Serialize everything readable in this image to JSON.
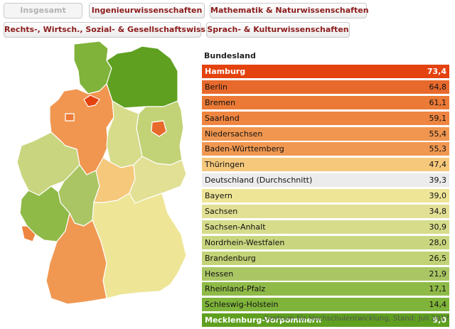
{
  "tabs": [
    {
      "label": "Insgesamt",
      "active": true
    },
    {
      "label": "Ingenieurwissenschaften",
      "active": false
    },
    {
      "label": "Mathematik & Naturwissenschaften",
      "active": false
    },
    {
      "label": "Rechts-, Wirtsch., Sozial- & Gesellschaftswiss.",
      "active": false
    },
    {
      "label": "Sprach- & Kulturwissenschaften",
      "active": false
    }
  ],
  "table": {
    "header": "Bundesland",
    "rows": [
      {
        "name": "Hamburg",
        "value": "73,4",
        "color": "#e4420e",
        "light": true
      },
      {
        "name": "Berlin",
        "value": "64,8",
        "color": "#e8692c"
      },
      {
        "name": "Bremen",
        "value": "61,1",
        "color": "#eb7a36"
      },
      {
        "name": "Saarland",
        "value": "59,1",
        "color": "#ee8540"
      },
      {
        "name": "Niedersachsen",
        "value": "55,4",
        "color": "#f09650"
      },
      {
        "name": "Baden-Württemberg",
        "value": "55,3",
        "color": "#f09852"
      },
      {
        "name": "Thüringen",
        "value": "47,4",
        "color": "#f5c87c"
      },
      {
        "name": "Deutschland (Durchschnitt)",
        "value": "39,3",
        "color": "#ececec"
      },
      {
        "name": "Bayern",
        "value": "39,0",
        "color": "#eee597"
      },
      {
        "name": "Sachsen",
        "value": "34,8",
        "color": "#e2e094"
      },
      {
        "name": "Sachsen-Anhalt",
        "value": "30,9",
        "color": "#d6dc8a"
      },
      {
        "name": "Nordrhein-Westfalen",
        "value": "28,0",
        "color": "#c9d67f"
      },
      {
        "name": "Brandenburg",
        "value": "26,5",
        "color": "#c2d276"
      },
      {
        "name": "Hessen",
        "value": "21,9",
        "color": "#aac664"
      },
      {
        "name": "Rheinland-Pfalz",
        "value": "17,1",
        "color": "#8fba48"
      },
      {
        "name": "Schleswig-Holstein",
        "value": "14,4",
        "color": "#7fb33a"
      },
      {
        "name": "Mecklenburg-Vorpommern",
        "value": "9,0",
        "color": "#5fa020",
        "light": true
      }
    ]
  },
  "source": "Centrum für Hochschulentwicklung, Stand: Juli 2017"
}
